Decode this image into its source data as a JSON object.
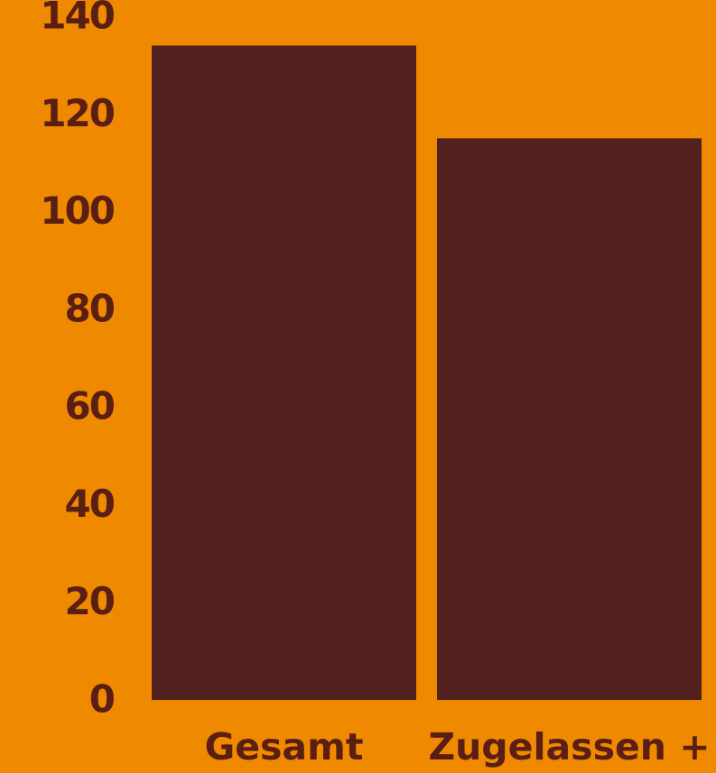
{
  "chart_data": {
    "type": "bar",
    "categories": [
      "Gesamt",
      "Zugelassen +"
    ],
    "values": [
      134,
      115
    ],
    "title": "",
    "xlabel": "",
    "ylabel": "",
    "ylim": [
      0,
      140
    ],
    "yticks": [
      0,
      20,
      40,
      60,
      80,
      100,
      120,
      140
    ],
    "grid": false,
    "legend": "none",
    "colors": {
      "background": "#EF8A00",
      "bar": "#532020",
      "text": "#5A1E14"
    }
  }
}
